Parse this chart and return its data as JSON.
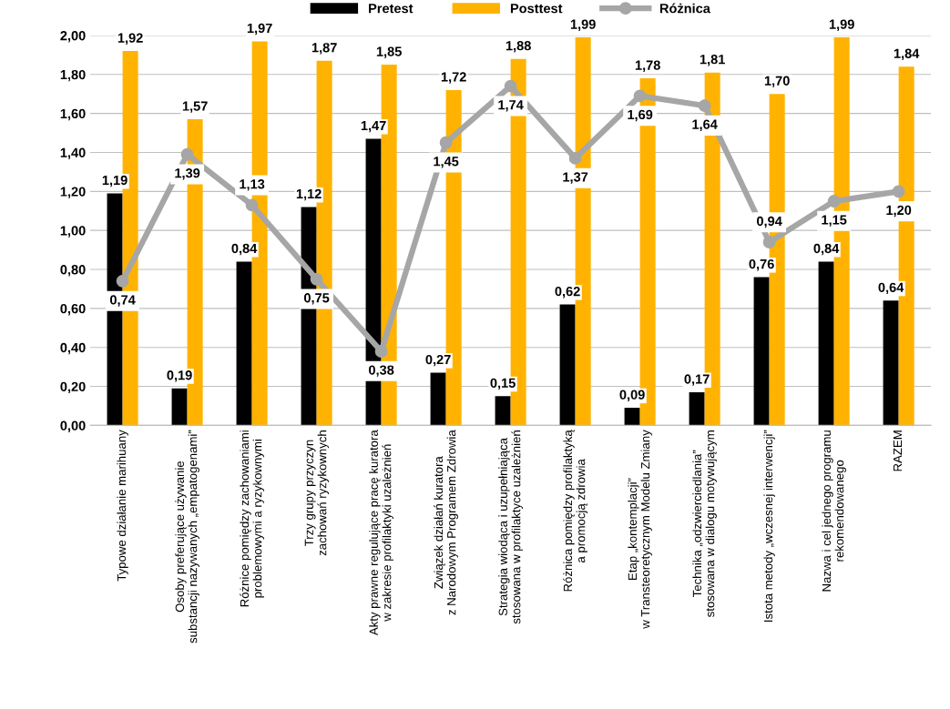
{
  "chart_data": {
    "type": "bar",
    "categories": [
      "Typowe działanie marihuany",
      "Osoby preferujące używanie\nsubstancji nazywanych „empatogenami”",
      "Różnice pomiędzy zachowaniami\nproblemowymi a ryzykownymi",
      "Trzy grupy przyczyn\nzachowań ryzykownych",
      "Akty prawne regulujące pracę kuratora\nw zakresie profilaktyki uzależnień",
      "Związek działań kuratora\nz Narodowym Programem Zdrowia",
      "Strategia wiodąca i uzupełniająca\nstosowana w profilaktyce uzależnień",
      "Różnica pomiędzy profilaktyką\na promocją zdrowia",
      "Etap „kontemplacji”\nw Transteoretycznym Modelu Zmiany",
      "Technika „odzwierciedlania”\nstosowana w dialogu motywującym",
      "Istota metody „wczesnej interwencji”",
      "Nazwa i cel jednego programu\nrekomendowanego",
      "RAZEM"
    ],
    "series": [
      {
        "name": "Pretest",
        "color": "#000000",
        "values": [
          1.19,
          0.19,
          0.84,
          1.12,
          1.47,
          0.27,
          0.15,
          0.62,
          0.09,
          0.17,
          0.76,
          0.84,
          0.64
        ],
        "value_labels": [
          "1,19",
          "0,19",
          "0,84",
          "1,12",
          "1,47",
          "0,27",
          "0,15",
          "0,62",
          "0,09",
          "0,17",
          "0,76",
          "0,84",
          "0,64"
        ]
      },
      {
        "name": "Posttest",
        "color": "#ffb300",
        "values": [
          1.92,
          1.57,
          1.97,
          1.87,
          1.85,
          1.72,
          1.88,
          1.99,
          1.78,
          1.81,
          1.7,
          1.99,
          1.84
        ],
        "value_labels": [
          "1,92",
          "1,57",
          "1,97",
          "1,87",
          "1,85",
          "1,72",
          "1,88",
          "1,99",
          "1,78",
          "1,81",
          "1,70",
          "1,99",
          "1,84"
        ]
      },
      {
        "name": "Różnica",
        "type": "line",
        "color": "#a6a6a6",
        "values": [
          0.74,
          1.39,
          1.13,
          0.75,
          0.38,
          1.45,
          1.74,
          1.37,
          1.69,
          1.64,
          0.94,
          1.15,
          1.2
        ],
        "value_labels": [
          "0,74",
          "1,39",
          "1,13",
          "0,75",
          "0,38",
          "1,45",
          "1,74",
          "1,37",
          "1,69",
          "1,64",
          "0,94",
          "1,15",
          "1,20"
        ]
      }
    ],
    "ylim": [
      0,
      2
    ],
    "yticks": [
      {
        "value": 0,
        "label": "0,00"
      },
      {
        "value": 0.2,
        "label": "0,20"
      },
      {
        "value": 0.4,
        "label": "0,40"
      },
      {
        "value": 0.6,
        "label": "0,60"
      },
      {
        "value": 0.8,
        "label": "0,80"
      },
      {
        "value": 1.0,
        "label": "1,00"
      },
      {
        "value": 1.2,
        "label": "1,20"
      },
      {
        "value": 1.4,
        "label": "1,40"
      },
      {
        "value": 1.6,
        "label": "1,60"
      },
      {
        "value": 1.8,
        "label": "1,80"
      },
      {
        "value": 2.0,
        "label": "2,00"
      }
    ],
    "grid": "y",
    "legend": "top",
    "marker": "circle",
    "line_style": "solid"
  }
}
